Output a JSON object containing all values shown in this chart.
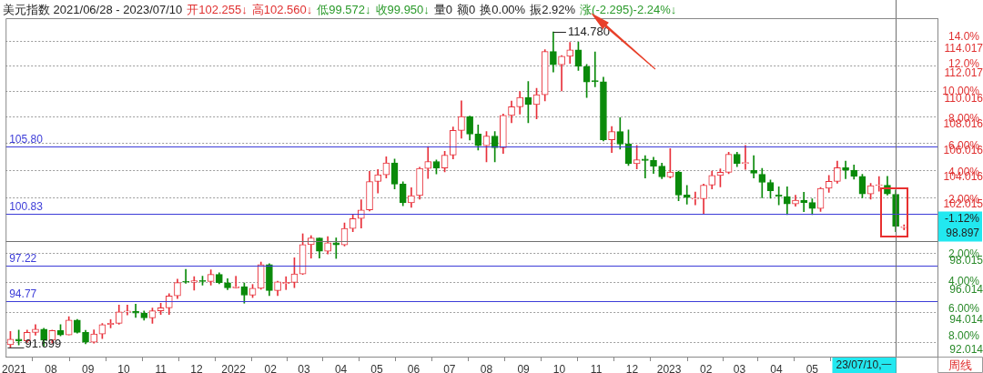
{
  "chart_data": {
    "type": "candlestick",
    "title": "美元指数 2021/06/28 - 2023/07/10",
    "subtitle": "开102.255↓ 高102.560↓ 低99.572↓ 收99.950↓ 量0 额0 换0.00% 振2.92% 涨(-2.295)-2.24%↓",
    "x": [
      "2021-06-28",
      "2021-07-05",
      "2021-07-12",
      "2021-07-19",
      "2021-07-26",
      "2021-08-02",
      "2021-08-09",
      "2021-08-16",
      "2021-08-23",
      "2021-08-30",
      "2021-09-06",
      "2021-09-13",
      "2021-09-20",
      "2021-09-27",
      "2021-10-04",
      "2021-10-11",
      "2021-10-18",
      "2021-10-25",
      "2021-11-01",
      "2021-11-08",
      "2021-11-15",
      "2021-11-22",
      "2021-11-29",
      "2021-12-06",
      "2021-12-13",
      "2021-12-20",
      "2021-12-27",
      "2022-01-03",
      "2022-01-10",
      "2022-01-17",
      "2022-01-24",
      "2022-01-31",
      "2022-02-07",
      "2022-02-14",
      "2022-02-21",
      "2022-02-28",
      "2022-03-07",
      "2022-03-14",
      "2022-03-21",
      "2022-03-28",
      "2022-04-04",
      "2022-04-11",
      "2022-04-18",
      "2022-04-25",
      "2022-05-02",
      "2022-05-09",
      "2022-05-16",
      "2022-05-23",
      "2022-05-30",
      "2022-06-06",
      "2022-06-13",
      "2022-06-20",
      "2022-06-27",
      "2022-07-04",
      "2022-07-11",
      "2022-07-18",
      "2022-07-25",
      "2022-08-01",
      "2022-08-08",
      "2022-08-15",
      "2022-08-22",
      "2022-08-29",
      "2022-09-05",
      "2022-09-12",
      "2022-09-19",
      "2022-09-26",
      "2022-10-03",
      "2022-10-10",
      "2022-10-17",
      "2022-10-24",
      "2022-10-31",
      "2022-11-07",
      "2022-11-14",
      "2022-11-21",
      "2022-11-28",
      "2022-12-05",
      "2022-12-12",
      "2022-12-19",
      "2022-12-26",
      "2023-01-02",
      "2023-01-09",
      "2023-01-16",
      "2023-01-23",
      "2023-01-30",
      "2023-02-06",
      "2023-02-13",
      "2023-02-20",
      "2023-02-27",
      "2023-03-06",
      "2023-03-13",
      "2023-03-20",
      "2023-03-27",
      "2023-04-03",
      "2023-04-10",
      "2023-04-17",
      "2023-04-24",
      "2023-05-01",
      "2023-05-08",
      "2023-05-15",
      "2023-05-22",
      "2023-05-29",
      "2023-06-05",
      "2023-06-12",
      "2023-06-19",
      "2023-06-26",
      "2023-07-03",
      "2023-07-10",
      "2023-07-17"
    ],
    "ohlc": [
      [
        91.87,
        92.74,
        91.699,
        92.23
      ],
      [
        92.23,
        92.83,
        91.86,
        92.13
      ],
      [
        92.13,
        92.83,
        92.03,
        92.68
      ],
      [
        92.68,
        93.19,
        92.5,
        92.9
      ],
      [
        92.9,
        92.96,
        91.78,
        92.17
      ],
      [
        92.17,
        92.84,
        91.98,
        92.8
      ],
      [
        92.8,
        93.2,
        92.46,
        92.52
      ],
      [
        92.52,
        93.73,
        92.51,
        93.5
      ],
      [
        93.5,
        93.54,
        92.63,
        92.68
      ],
      [
        92.68,
        92.82,
        91.94,
        92.04
      ],
      [
        92.04,
        92.85,
        91.98,
        92.58
      ],
      [
        92.58,
        93.28,
        92.28,
        93.2
      ],
      [
        93.2,
        93.53,
        92.98,
        93.29
      ],
      [
        93.29,
        94.5,
        93.22,
        94.04
      ],
      [
        94.04,
        94.5,
        93.85,
        94.08
      ],
      [
        94.08,
        94.56,
        93.67,
        93.96
      ],
      [
        93.96,
        94.1,
        93.5,
        93.64
      ],
      [
        93.64,
        94.3,
        93.28,
        94.12
      ],
      [
        94.12,
        94.63,
        93.87,
        94.32
      ],
      [
        94.32,
        95.27,
        93.87,
        95.12
      ],
      [
        95.12,
        96.27,
        94.95,
        96.03
      ],
      [
        96.1,
        96.94,
        95.97,
        96.05
      ],
      [
        96.05,
        96.44,
        95.51,
        96.15
      ],
      [
        96.15,
        96.46,
        95.85,
        96.1
      ],
      [
        96.1,
        96.91,
        95.86,
        96.59
      ],
      [
        96.59,
        96.7,
        95.94,
        96.02
      ],
      [
        96.02,
        96.3,
        95.54,
        95.67
      ],
      [
        95.67,
        96.46,
        95.67,
        95.75
      ],
      [
        95.75,
        96.0,
        94.63,
        95.17
      ],
      [
        95.17,
        95.9,
        95.01,
        95.64
      ],
      [
        95.64,
        97.44,
        95.57,
        97.26
      ],
      [
        97.26,
        97.33,
        95.14,
        95.48
      ],
      [
        95.48,
        96.13,
        95.14,
        96.08
      ],
      [
        95.96,
        96.43,
        95.55,
        96.04
      ],
      [
        96.04,
        97.74,
        95.68,
        96.62
      ],
      [
        96.62,
        99.42,
        96.58,
        98.66
      ],
      [
        98.66,
        99.29,
        97.71,
        99.13
      ],
      [
        99.13,
        99.13,
        97.71,
        98.19
      ],
      [
        98.19,
        99.22,
        98.0,
        98.79
      ],
      [
        98.79,
        99.13,
        97.69,
        98.64
      ],
      [
        98.64,
        100.19,
        98.56,
        99.8
      ],
      [
        99.8,
        100.76,
        99.57,
        100.5
      ],
      [
        100.5,
        101.86,
        99.82,
        101.12
      ],
      [
        101.12,
        103.93,
        101.04,
        103.19
      ],
      [
        103.19,
        104.07,
        102.35,
        103.68
      ],
      [
        103.68,
        105.01,
        103.44,
        104.56
      ],
      [
        104.56,
        104.85,
        102.65,
        103.0
      ],
      [
        103.0,
        103.16,
        101.43,
        101.64
      ],
      [
        101.64,
        102.74,
        101.3,
        102.16
      ],
      [
        102.16,
        104.24,
        101.9,
        104.15
      ],
      [
        104.15,
        105.79,
        103.41,
        104.67
      ],
      [
        104.67,
        104.78,
        103.75,
        104.19
      ],
      [
        104.19,
        105.43,
        103.89,
        105.14
      ],
      [
        105.14,
        107.27,
        104.86,
        107.01
      ],
      [
        107.01,
        109.29,
        106.41,
        108.07
      ],
      [
        108.07,
        108.1,
        106.27,
        106.73
      ],
      [
        106.73,
        107.43,
        105.53,
        105.85
      ],
      [
        105.85,
        106.93,
        104.64,
        106.58
      ],
      [
        106.58,
        106.93,
        104.64,
        105.69
      ],
      [
        105.69,
        108.27,
        105.27,
        108.15
      ],
      [
        108.15,
        109.27,
        107.59,
        108.82
      ],
      [
        108.82,
        110.01,
        108.26,
        109.54
      ],
      [
        109.54,
        110.79,
        107.59,
        109.0
      ],
      [
        109.0,
        110.26,
        107.88,
        109.76
      ],
      [
        109.76,
        113.33,
        109.28,
        113.19
      ],
      [
        113.19,
        114.78,
        111.55,
        112.12
      ],
      [
        112.12,
        112.85,
        110.06,
        112.8
      ],
      [
        112.8,
        113.92,
        112.23,
        113.31
      ],
      [
        113.31,
        113.95,
        111.68,
        111.99
      ],
      [
        111.99,
        112.15,
        109.54,
        110.76
      ],
      [
        110.86,
        113.15,
        110.38,
        110.77
      ],
      [
        110.77,
        111.14,
        106.2,
        106.29
      ],
      [
        106.29,
        107.3,
        105.34,
        106.92
      ],
      [
        106.92,
        107.99,
        105.59,
        105.97
      ],
      [
        105.97,
        107.04,
        104.37,
        104.51
      ],
      [
        104.51,
        105.88,
        104.12,
        104.8
      ],
      [
        104.85,
        105.11,
        103.44,
        104.74
      ],
      [
        104.74,
        104.99,
        103.78,
        104.32
      ],
      [
        104.32,
        104.54,
        103.39,
        103.52
      ],
      [
        103.52,
        105.63,
        103.45,
        103.89
      ],
      [
        103.89,
        103.95,
        101.79,
        102.2
      ],
      [
        102.2,
        102.9,
        101.53,
        102.02
      ],
      [
        101.9,
        102.41,
        101.49,
        101.93
      ],
      [
        101.93,
        103.0,
        100.82,
        102.92
      ],
      [
        102.92,
        103.96,
        102.64,
        103.63
      ],
      [
        103.63,
        104.12,
        102.8,
        103.87
      ],
      [
        103.87,
        105.36,
        103.77,
        105.21
      ],
      [
        105.21,
        105.36,
        104.28,
        104.52
      ],
      [
        104.52,
        105.88,
        104.09,
        104.58
      ],
      [
        104.0,
        105.11,
        103.44,
        103.8
      ],
      [
        103.72,
        104.15,
        102.0,
        103.12
      ],
      [
        103.12,
        103.3,
        101.97,
        102.51
      ],
      [
        102.2,
        102.8,
        101.49,
        102.09
      ],
      [
        102.09,
        102.8,
        100.79,
        101.55
      ],
      [
        101.55,
        102.18,
        101.39,
        101.83
      ],
      [
        101.83,
        102.4,
        101.0,
        101.66
      ],
      [
        101.66,
        101.92,
        100.79,
        101.22
      ],
      [
        101.22,
        102.75,
        101.01,
        102.69
      ],
      [
        102.69,
        103.63,
        102.39,
        103.2
      ],
      [
        103.2,
        104.7,
        103.06,
        104.21
      ],
      [
        104.21,
        104.7,
        103.39,
        104.02
      ],
      [
        104.02,
        104.4,
        103.36,
        103.56
      ],
      [
        103.56,
        103.72,
        102.0,
        102.28
      ],
      [
        102.28,
        103.05,
        101.9,
        102.89
      ],
      [
        102.89,
        103.55,
        102.47,
        102.91
      ],
      [
        102.91,
        103.56,
        102.2,
        102.28
      ],
      [
        102.255,
        102.56,
        99.572,
        99.95
      ],
      [
        99.86,
        100.06,
        99.7,
        99.92
      ]
    ],
    "xlim": [
      "2021-06-24",
      "2023-08-14"
    ],
    "xticks": [
      {
        "value": "2021-07-01",
        "label": "2021"
      },
      {
        "value": "2021-08-01",
        "label": "08"
      },
      {
        "value": "2021-09-01",
        "label": "09"
      },
      {
        "value": "2021-10-01",
        "label": "10"
      },
      {
        "value": "2021-11-01",
        "label": "11"
      },
      {
        "value": "2021-12-01",
        "label": "12"
      },
      {
        "value": "2022-01-01",
        "label": "2022"
      },
      {
        "value": "2022-02-01",
        "label": "02"
      },
      {
        "value": "2022-03-01",
        "label": "03"
      },
      {
        "value": "2022-04-01",
        "label": "04"
      },
      {
        "value": "2022-05-01",
        "label": "05"
      },
      {
        "value": "2022-06-01",
        "label": "06"
      },
      {
        "value": "2022-07-01",
        "label": "07"
      },
      {
        "value": "2022-08-01",
        "label": "08"
      },
      {
        "value": "2022-09-01",
        "label": "09"
      },
      {
        "value": "2022-10-01",
        "label": "10"
      },
      {
        "value": "2022-11-01",
        "label": "11"
      },
      {
        "value": "2022-12-01",
        "label": "12"
      },
      {
        "value": "2023-01-01",
        "label": "2023"
      },
      {
        "value": "2023-02-01",
        "label": "02"
      },
      {
        "value": "2023-03-01",
        "label": "03"
      },
      {
        "value": "2023-04-01",
        "label": "04"
      },
      {
        "value": "2023-05-01",
        "label": "05"
      }
    ],
    "ylim": [
      91.1,
      115.9
    ],
    "log": true,
    "yticks": [
      114.017,
      112.017,
      110.016,
      108.016,
      106.016,
      104.016,
      102.015,
      98.015,
      96.014,
      94.014,
      92.014
    ],
    "y2lim": [
      -9.49,
      15.37
    ],
    "y2ticks": [
      {
        "value": 14,
        "label": "14.0%"
      },
      {
        "value": 12,
        "label": "12.0%"
      },
      {
        "value": 10,
        "label": "10.00%"
      },
      {
        "value": 8,
        "label": "8.00%"
      },
      {
        "value": 6,
        "label": "6.00%"
      },
      {
        "value": 4,
        "label": "4.00%"
      },
      {
        "value": 2,
        "label": "2.00%"
      },
      {
        "value": -2,
        "label": "2.00%"
      },
      {
        "value": -4,
        "label": "4.00%"
      },
      {
        "value": -6,
        "label": "6.00%"
      },
      {
        "value": -8,
        "label": "8.00%"
      }
    ],
    "grid": "y",
    "legend": false,
    "ref_lines": [
      {
        "axis": "y",
        "value": 105.8,
        "label": "105.80",
        "color": "#3c3cd8"
      },
      {
        "axis": "y",
        "value": 100.83,
        "label": "100.83",
        "color": "#3c3cd8"
      },
      {
        "axis": "y",
        "value": 97.22,
        "label": "97.22",
        "color": "#3c3cd8"
      },
      {
        "axis": "y",
        "value": 94.77,
        "label": "94.77",
        "color": "#3c3cd8"
      },
      {
        "axis": "y",
        "value": 98.897,
        "label": "-1.12%\n98.897",
        "color": "#707070"
      },
      {
        "axis": "x",
        "value": "2023-07-10",
        "label": "23/07/10,一",
        "color": "#707070"
      }
    ],
    "annotations": [
      {
        "text": "114.780",
        "x": "2022-09-26",
        "y": 114.78
      },
      {
        "text": "91.699",
        "x": "2021-06-28",
        "y": 91.699
      },
      "周线"
    ]
  }
}
